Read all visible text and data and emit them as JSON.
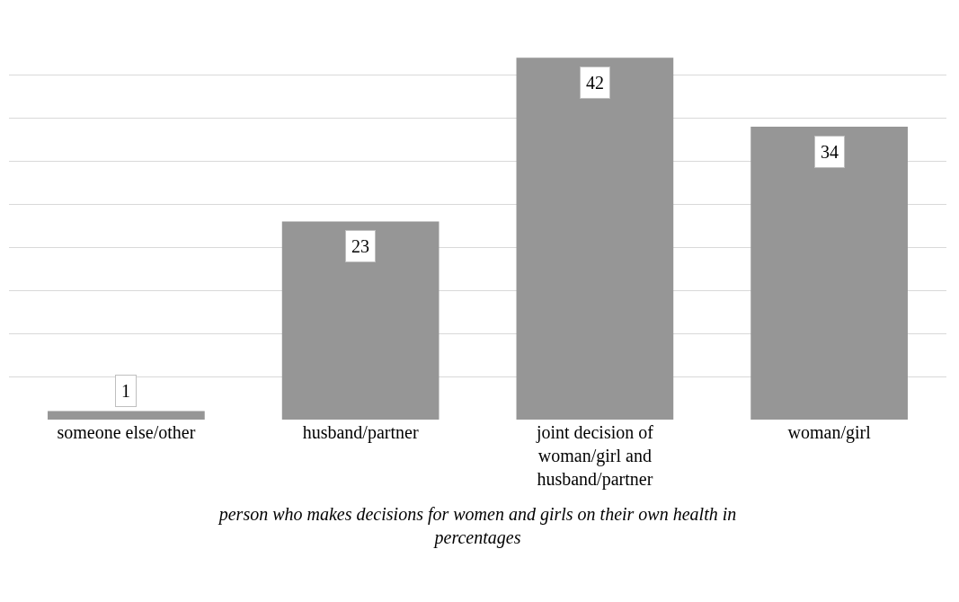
{
  "chart_data": {
    "type": "bar",
    "categories": [
      "someone else/other",
      "husband/partner",
      "joint decision of woman/girl and husband/partner",
      "woman/girl"
    ],
    "values": [
      1,
      23,
      42,
      34
    ],
    "color": "#969696",
    "xlabel": "person who makes decisions for women and girls on their own health in percentages",
    "tick_labels": "x",
    "grid": "y",
    "data_labels": true
  }
}
